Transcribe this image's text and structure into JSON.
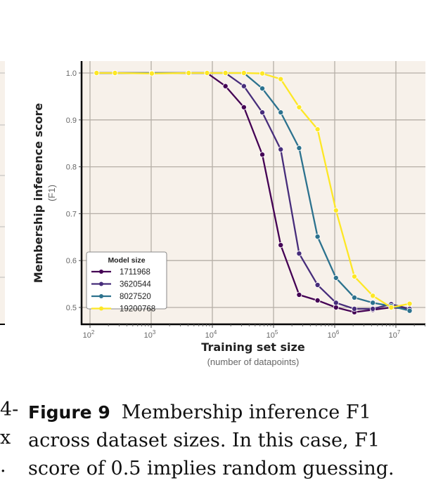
{
  "chart_data": {
    "type": "line",
    "xlabel": "Training set size",
    "xlabel_sub": "(number of datapoints)",
    "ylabel": "Membership inference score",
    "ylabel_sub": "(F1)",
    "x_scale": "log",
    "xlim": [
      80,
      25000000
    ],
    "ylim": [
      0.465,
      1.025
    ],
    "x_ticks": [
      {
        "base": "10",
        "exp": "2",
        "v": 100
      },
      {
        "base": "10",
        "exp": "3",
        "v": 1000
      },
      {
        "base": "10",
        "exp": "4",
        "v": 10000
      },
      {
        "base": "10",
        "exp": "5",
        "v": 100000
      },
      {
        "base": "10",
        "exp": "6",
        "v": 1000000
      },
      {
        "base": "10",
        "exp": "7",
        "v": 10000000
      }
    ],
    "y_ticks": [
      "0.5",
      "0.6",
      "0.7",
      "0.8",
      "0.9",
      "1.0"
    ],
    "grid": true,
    "background": "#f7f1ea",
    "legend": {
      "title": "Model size",
      "placement": "bottom-left"
    },
    "x": [
      128,
      256,
      1024,
      4096,
      8192,
      16384,
      32768,
      65536,
      131072,
      262144,
      524288,
      1048576,
      2097152,
      4194304,
      8388608,
      16777216
    ],
    "series": [
      {
        "name": "1711968",
        "color": "#440154",
        "values": [
          1.0,
          1.0,
          1.0,
          1.0,
          1.0,
          0.972,
          0.927,
          0.826,
          0.633,
          0.527,
          0.515,
          0.5,
          0.49,
          0.495,
          0.5,
          0.497
        ]
      },
      {
        "name": "3620544",
        "color": "#472d7b",
        "values": [
          1.0,
          1.0,
          1.0,
          1.0,
          1.0,
          1.0,
          0.972,
          0.916,
          0.837,
          0.615,
          0.548,
          0.51,
          0.497,
          0.497,
          0.507,
          0.497
        ]
      },
      {
        "name": "8027520",
        "color": "#2c728e",
        "values": [
          1.0,
          1.0,
          1.0,
          1.0,
          1.0,
          1.0,
          1.0,
          0.967,
          0.916,
          0.84,
          0.651,
          0.563,
          0.521,
          0.51,
          0.503,
          0.493
        ]
      },
      {
        "name": "19200768",
        "color": "#fde725",
        "values": [
          1.0,
          1.0,
          0.999,
          1.0,
          1.0,
          1.0,
          1.0,
          0.999,
          0.987,
          0.927,
          0.88,
          0.707,
          0.566,
          0.525,
          0.5,
          0.508
        ]
      }
    ]
  },
  "caption": {
    "label": "Figure 9",
    "lines": [
      "Membership inference F1",
      "across dataset sizes. In this case, F1",
      "score of 0.5 implies random guessing."
    ]
  },
  "left_column_fragments": [
    "4-",
    "x",
    "."
  ]
}
